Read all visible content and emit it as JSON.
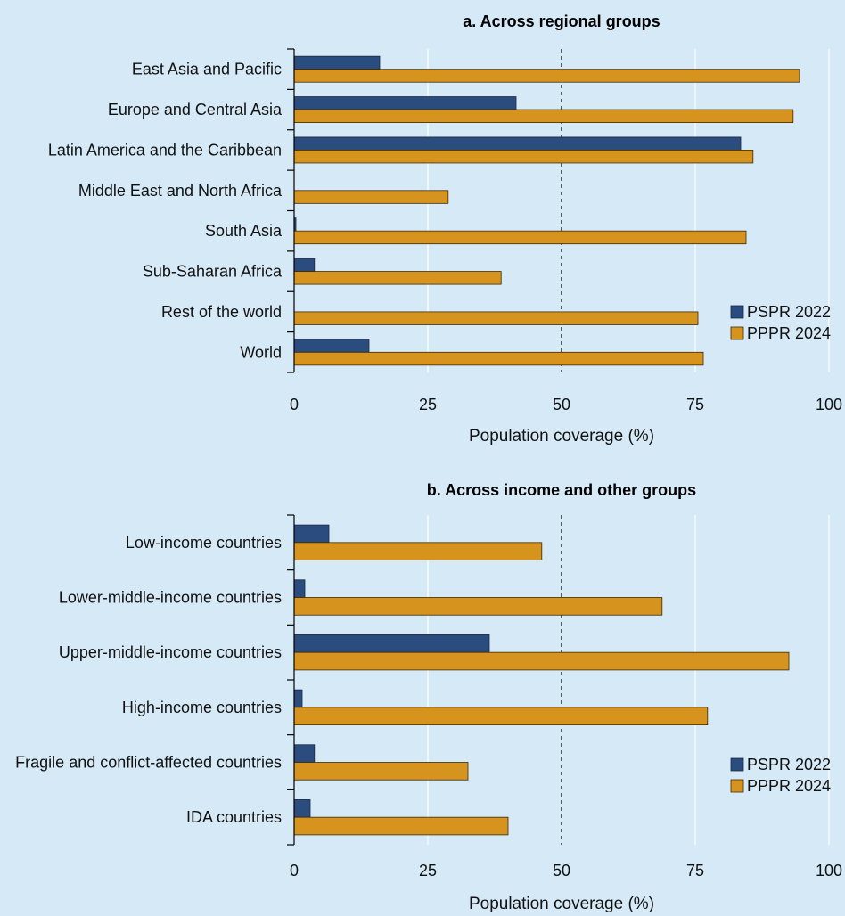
{
  "colors": {
    "background": "#d6e9f7",
    "pspr_2022": "#2b4c7e",
    "pppr_2024": "#d6941e",
    "gridline": "#ffffff",
    "axis": "#000000"
  },
  "chart_data": [
    {
      "type": "bar",
      "orientation": "horizontal",
      "title": "a. Across regional groups",
      "xlabel": "Population coverage (%)",
      "xlim": [
        0,
        100
      ],
      "xticks": [
        0,
        25,
        50,
        75,
        100
      ],
      "reference_line": 50,
      "legend_position": "bottom-right",
      "categories": [
        "East Asia and Pacific",
        "Europe and Central Asia",
        "Latin America and the Caribbean",
        "Middle East and North Africa",
        "South Asia",
        "Sub-Saharan Africa",
        "Rest of the world",
        "World"
      ],
      "series": [
        {
          "name": "PSPR 2022",
          "values": [
            16,
            41.5,
            83.5,
            0,
            0.3,
            3.8,
            0,
            14
          ]
        },
        {
          "name": "PPPR 2024",
          "values": [
            94.5,
            93.3,
            85.8,
            28.8,
            84.5,
            38.7,
            75.5,
            76.5
          ]
        }
      ]
    },
    {
      "type": "bar",
      "orientation": "horizontal",
      "title": "b. Across income and other groups",
      "xlabel": "Population coverage (%)",
      "xlim": [
        0,
        100
      ],
      "xticks": [
        0,
        25,
        50,
        75,
        100
      ],
      "reference_line": 50,
      "legend_position": "bottom-right",
      "categories": [
        "Low-income countries",
        "Lower-middle-income countries",
        "Upper-middle-income countries",
        "High-income countries",
        "Fragile and conflict-affected countries",
        "IDA countries"
      ],
      "series": [
        {
          "name": "PSPR 2022",
          "values": [
            6.5,
            2,
            36.5,
            1.5,
            3.8,
            3
          ]
        },
        {
          "name": "PPPR 2024",
          "values": [
            46.3,
            68.8,
            92.5,
            77.3,
            32.5,
            40
          ]
        }
      ]
    }
  ]
}
